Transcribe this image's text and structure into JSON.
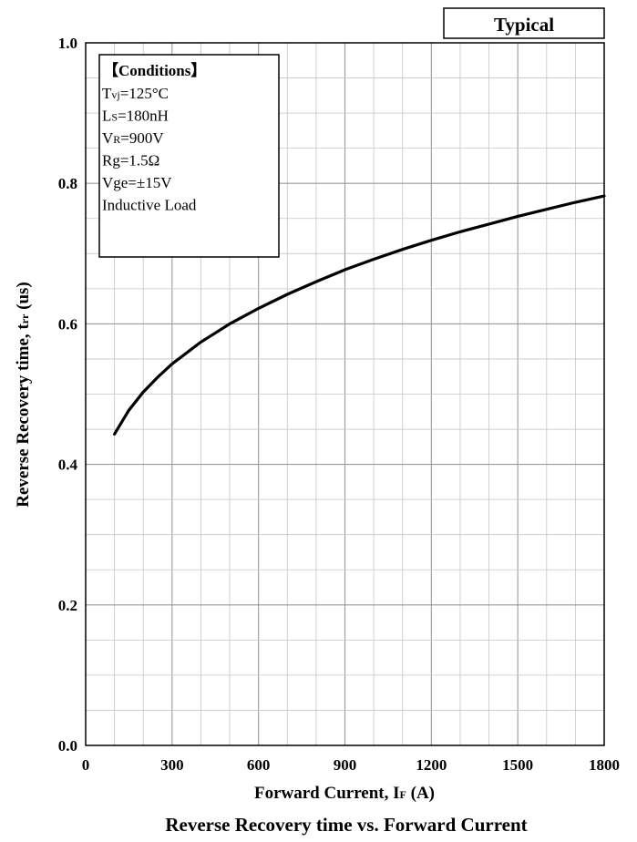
{
  "chart_data": {
    "type": "line",
    "title": "Reverse Recovery time vs. Forward Current",
    "badge": "Typical",
    "xlabel": {
      "main": "Forward Current, I",
      "sub": "F",
      "tail": " (A)"
    },
    "ylabel": {
      "main": "Reverse Recovery time, t",
      "sub": "rr",
      "tail": " (us)"
    },
    "xlim": [
      0,
      1800
    ],
    "ylim": [
      0.0,
      1.0
    ],
    "xticks": [
      0,
      300,
      600,
      900,
      1200,
      1500,
      1800
    ],
    "xtick_labels": [
      "0",
      "300",
      "600",
      "900",
      "1200",
      "1500",
      "1800"
    ],
    "yticks": [
      0.0,
      0.2,
      0.4,
      0.6,
      0.8,
      1.0
    ],
    "ytick_labels": [
      "0.0",
      "0.2",
      "0.4",
      "0.6",
      "0.8",
      "1.0"
    ],
    "grid": true,
    "series": [
      {
        "x": [
          100,
          150,
          200,
          250,
          300,
          400,
          500,
          600,
          700,
          800,
          900,
          1000,
          1100,
          1200,
          1300,
          1400,
          1500,
          1600,
          1700,
          1800
        ],
        "y": [
          0.443,
          0.477,
          0.503,
          0.524,
          0.543,
          0.574,
          0.6,
          0.622,
          0.642,
          0.66,
          0.677,
          0.692,
          0.706,
          0.719,
          0.731,
          0.742,
          0.753,
          0.763,
          0.773,
          0.782
        ]
      }
    ],
    "conditions": {
      "title": "【Conditions】",
      "lines": [
        {
          "main": "T",
          "sub": "vj",
          "tail": "=125°C"
        },
        {
          "main": "L",
          "sub": "S",
          "tail": "=180nH"
        },
        {
          "main": "V",
          "sub": "R",
          "tail": "=900V"
        },
        {
          "main": "Rg=1.5Ω",
          "sub": "",
          "tail": ""
        },
        {
          "main": "Vge=±15V",
          "sub": "",
          "tail": ""
        },
        {
          "main": "Inductive Load",
          "sub": "",
          "tail": ""
        }
      ]
    }
  }
}
